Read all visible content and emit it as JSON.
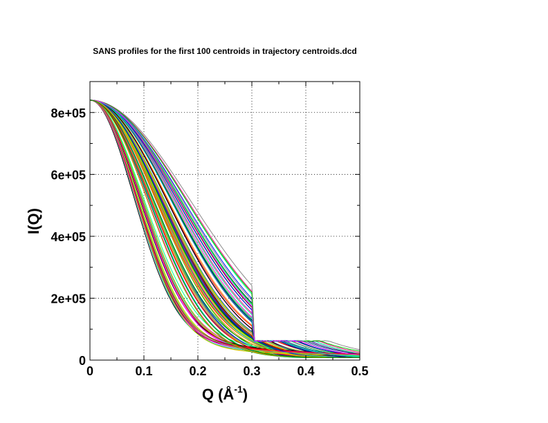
{
  "chart_data": {
    "type": "line",
    "title": "SANS profiles for the first 100 centroids in trajectory centroids.dcd",
    "xlabel_main": "Q (Å",
    "xlabel_sup": "-1",
    "xlabel_close": ")",
    "ylabel": "I(Q)",
    "xlim": [
      0,
      0.5
    ],
    "ylim": [
      0,
      900000
    ],
    "x_ticks": [
      {
        "value": 0,
        "label": "0"
      },
      {
        "value": 0.1,
        "label": "0.1"
      },
      {
        "value": 0.2,
        "label": "0.2"
      },
      {
        "value": 0.3,
        "label": "0.3"
      },
      {
        "value": 0.4,
        "label": "0.4"
      },
      {
        "value": 0.5,
        "label": "0.5"
      }
    ],
    "y_ticks": [
      {
        "value": 0,
        "label": "0"
      },
      {
        "value": 200000,
        "label": "2e+05"
      },
      {
        "value": 400000,
        "label": "4e+05"
      },
      {
        "value": 600000,
        "label": "6e+05"
      },
      {
        "value": 800000,
        "label": "8e+05"
      }
    ],
    "grid": true,
    "legend": "none",
    "series_count": 100,
    "i0": 840000,
    "representative_series": [
      {
        "color": "#000000",
        "x": [
          0,
          0.05,
          0.1,
          0.15,
          0.2,
          0.25,
          0.3,
          0.35,
          0.4,
          0.45,
          0.5
        ],
        "y": [
          840000,
          800000,
          705000,
          560000,
          380000,
          210000,
          90000,
          35000,
          20000,
          22000,
          20000
        ]
      },
      {
        "color": "#0000ff",
        "x": [
          0,
          0.05,
          0.1,
          0.15,
          0.2,
          0.25,
          0.3,
          0.35,
          0.4,
          0.45,
          0.5
        ],
        "y": [
          840000,
          560000,
          250000,
          150000,
          120000,
          100000,
          80000,
          60000,
          50000,
          45000,
          40000
        ]
      },
      {
        "color": "#ff0000",
        "x": [
          0,
          0.05,
          0.1,
          0.15,
          0.2,
          0.25,
          0.3,
          0.35,
          0.4,
          0.45,
          0.5
        ],
        "y": [
          840000,
          700000,
          480000,
          260000,
          130000,
          90000,
          75000,
          55000,
          40000,
          30000,
          25000
        ]
      }
    ],
    "colors": [
      "#000000",
      "#ff0000",
      "#00cc00",
      "#0000ff",
      "#00cccc",
      "#ff00ff",
      "#cccc00",
      "#ff8800",
      "#888888",
      "#008800",
      "#880000",
      "#000088",
      "#ff0088",
      "#88ff00",
      "#00ff88"
    ]
  }
}
